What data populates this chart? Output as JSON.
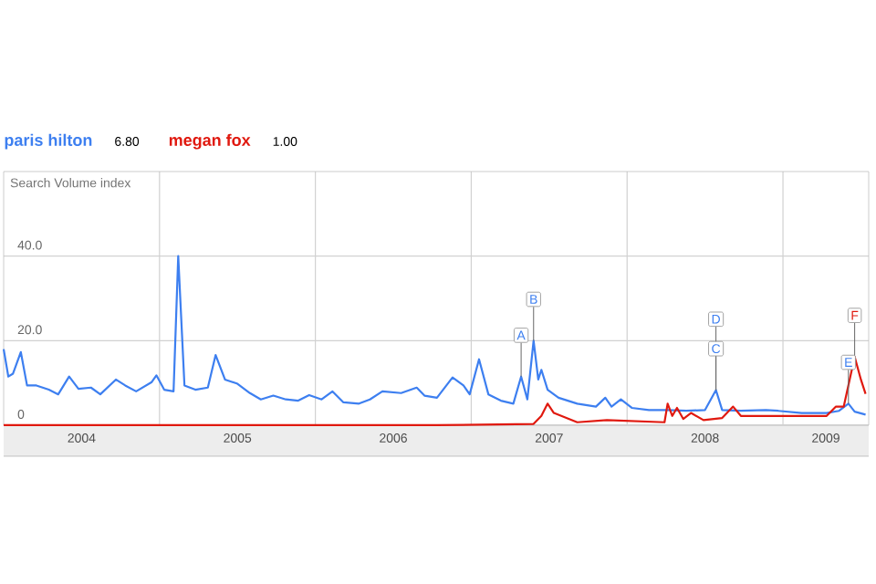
{
  "chart_data": {
    "type": "line",
    "ylabel": "Search Volume index",
    "x": [
      2004.0,
      2004.03,
      2004.06,
      2004.11,
      2004.15,
      2004.21,
      2004.29,
      2004.35,
      2004.42,
      2004.48,
      2004.56,
      2004.62,
      2004.72,
      2004.78,
      2004.85,
      2004.95,
      2004.98,
      2005.03,
      2005.09,
      2005.12,
      2005.16,
      2005.23,
      2005.31,
      2005.36,
      2005.42,
      2005.5,
      2005.58,
      2005.65,
      2005.73,
      2005.81,
      2005.89,
      2005.96,
      2006.04,
      2006.11,
      2006.18,
      2006.28,
      2006.35,
      2006.43,
      2006.55,
      2006.65,
      2006.7,
      2006.78,
      2006.88,
      2006.95,
      2006.99,
      2007.05,
      2007.11,
      2007.19,
      2007.27,
      2007.32,
      2007.36,
      2007.4,
      2007.43,
      2007.45,
      2007.49,
      2007.56,
      2007.68,
      2007.8,
      2007.86,
      2007.9,
      2007.96,
      2008.03,
      2008.14,
      2008.26,
      2008.38,
      2008.5,
      2008.57,
      2008.61,
      2008.73,
      2008.89,
      2008.97,
      2009.12,
      2009.28,
      2009.36,
      2009.42,
      2009.46,
      2009.53
    ],
    "series": [
      {
        "name": "paris hilton",
        "color": "#3d7ff0",
        "values": [
          18.0,
          11.5,
          12.2,
          17.3,
          9.4,
          9.4,
          8.4,
          7.3,
          11.5,
          8.6,
          8.9,
          7.3,
          10.8,
          9.4,
          8.0,
          10.2,
          11.8,
          8.4,
          8.0,
          40.0,
          9.4,
          8.4,
          8.9,
          16.6,
          10.8,
          9.8,
          7.6,
          6.1,
          7.0,
          6.1,
          5.8,
          7.1,
          6.1,
          8.0,
          5.4,
          5.1,
          6.1,
          8.0,
          7.6,
          8.9,
          7.0,
          6.5,
          11.3,
          9.4,
          7.3,
          15.6,
          7.3,
          5.8,
          5.1,
          11.5,
          6.1,
          20.0,
          10.8,
          13.1,
          8.4,
          6.5,
          5.1,
          4.4,
          6.5,
          4.4,
          6.1,
          4.1,
          3.6,
          3.6,
          3.4,
          3.6,
          8.3,
          3.6,
          3.4,
          3.6,
          3.4,
          2.9,
          2.9,
          3.4,
          5.1,
          3.2,
          2.5
        ]
      },
      {
        "name": "megan fox",
        "color": "#e0190f",
        "x": [
          2004.0,
          2006.78,
          2007.4,
          2007.45,
          2007.49,
          2007.53,
          2007.68,
          2007.87,
          2008.24,
          2008.26,
          2008.29,
          2008.32,
          2008.36,
          2008.41,
          2008.49,
          2008.61,
          2008.68,
          2008.73,
          2008.89,
          2009.12,
          2009.28,
          2009.34,
          2009.39,
          2009.46,
          2009.5,
          2009.53
        ],
        "values": [
          0,
          0,
          0.3,
          2.2,
          5.1,
          2.9,
          0.7,
          1.2,
          0.7,
          5.1,
          2.2,
          4.1,
          1.5,
          2.9,
          1.2,
          1.7,
          4.4,
          2.2,
          2.2,
          2.2,
          2.2,
          4.4,
          4.4,
          16.2,
          10.8,
          7.4
        ]
      }
    ],
    "annotations": [
      "6.80",
      "1.00",
      {
        "text": "A",
        "x": 2007.32,
        "y": 11.5
      },
      {
        "text": "B",
        "x": 2007.4,
        "y": 20.0
      },
      {
        "text": "C",
        "x": 2008.57,
        "y": 8.3
      },
      {
        "text": "D",
        "x": 2008.57,
        "y": 8.3
      },
      {
        "text": "E",
        "x": 2009.42,
        "y": 5.1
      },
      {
        "text": "F",
        "x": 2009.46,
        "y": 16.2
      }
    ],
    "xlim": [
      2004.0,
      2009.55
    ],
    "ylim": [
      0,
      60
    ],
    "xticks": [
      {
        "value": 2005,
        "label": null
      },
      {
        "value": 2006,
        "label": null
      },
      {
        "value": 2007,
        "label": null
      },
      {
        "value": 2008,
        "label": null
      },
      {
        "value": 2009,
        "label": null
      },
      {
        "value": 2004.5,
        "label": "2004"
      },
      {
        "value": 2005.5,
        "label": "2005"
      },
      {
        "value": 2006.5,
        "label": "2006"
      },
      {
        "value": 2007.5,
        "label": "2007"
      },
      {
        "value": 2008.5,
        "label": "2008"
      },
      {
        "value": 2009.275,
        "label": "2009"
      }
    ],
    "yticks": [
      0,
      {
        "value": 20,
        "label": "20.0"
      },
      {
        "value": 40,
        "label": "40.0"
      }
    ],
    "grid": true,
    "legend": "top left",
    "marker": "none",
    "line_style": "solid"
  }
}
